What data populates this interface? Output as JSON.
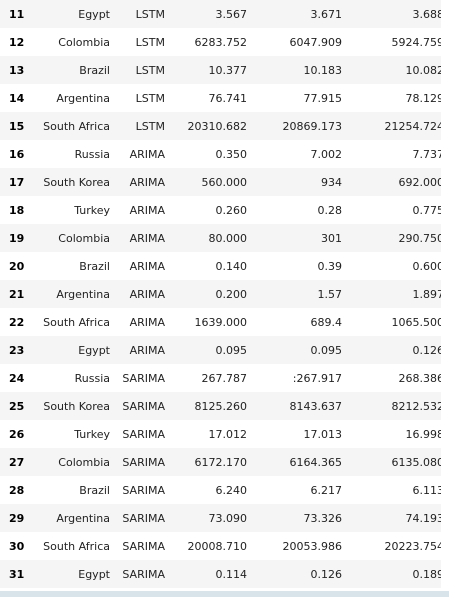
{
  "table": {
    "rows": [
      {
        "index": "11",
        "country": "Egypt",
        "model": "LSTM",
        "v1": "3.567",
        "v2": "3.671",
        "v3": "3.688"
      },
      {
        "index": "12",
        "country": "Colombia",
        "model": "LSTM",
        "v1": "6283.752",
        "v2": "6047.909",
        "v3": "5924.759"
      },
      {
        "index": "13",
        "country": "Brazil",
        "model": "LSTM",
        "v1": "10.377",
        "v2": "10.183",
        "v3": "10.082"
      },
      {
        "index": "14",
        "country": "Argentina",
        "model": "LSTM",
        "v1": "76.741",
        "v2": "77.915",
        "v3": "78.129"
      },
      {
        "index": "15",
        "country": "South Africa",
        "model": "LSTM",
        "v1": "20310.682",
        "v2": "20869.173",
        "v3": "21254.724"
      },
      {
        "index": "16",
        "country": "Russia",
        "model": "ARIMA",
        "v1": "0.350",
        "v2": "7.002",
        "v3": "7.737"
      },
      {
        "index": "17",
        "country": "South Korea",
        "model": "ARIMA",
        "v1": "560.000",
        "v2": "934",
        "v3": "692.000"
      },
      {
        "index": "18",
        "country": "Turkey",
        "model": "ARIMA",
        "v1": "0.260",
        "v2": "0.28",
        "v3": "0.775"
      },
      {
        "index": "19",
        "country": "Colombia",
        "model": "ARIMA",
        "v1": "80.000",
        "v2": "301",
        "v3": "290.750"
      },
      {
        "index": "20",
        "country": "Brazil",
        "model": "ARIMA",
        "v1": "0.140",
        "v2": "0.39",
        "v3": "0.600"
      },
      {
        "index": "21",
        "country": "Argentina",
        "model": "ARIMA",
        "v1": "0.200",
        "v2": "1.57",
        "v3": "1.897"
      },
      {
        "index": "22",
        "country": "South Africa",
        "model": "ARIMA",
        "v1": "1639.000",
        "v2": "689.4",
        "v3": "1065.500"
      },
      {
        "index": "23",
        "country": "Egypt",
        "model": "ARIMA",
        "v1": "0.095",
        "v2": "0.095",
        "v3": "0.126"
      },
      {
        "index": "24",
        "country": "Russia",
        "model": "SARIMA",
        "v1": "267.787",
        "v2": ":267.917",
        "v3": "268.386"
      },
      {
        "index": "25",
        "country": "South Korea",
        "model": "SARIMA",
        "v1": "8125.260",
        "v2": "8143.637",
        "v3": "8212.532"
      },
      {
        "index": "26",
        "country": "Turkey",
        "model": "SARIMA",
        "v1": "17.012",
        "v2": "17.013",
        "v3": "16.998"
      },
      {
        "index": "27",
        "country": "Colombia",
        "model": "SARIMA",
        "v1": "6172.170",
        "v2": "6164.365",
        "v3": "6135.080"
      },
      {
        "index": "28",
        "country": "Brazil",
        "model": "SARIMA",
        "v1": "6.240",
        "v2": "6.217",
        "v3": "6.113"
      },
      {
        "index": "29",
        "country": "Argentina",
        "model": "SARIMA",
        "v1": "73.090",
        "v2": "73.326",
        "v3": "74.193"
      },
      {
        "index": "30",
        "country": "South Africa",
        "model": "SARIMA",
        "v1": "20008.710",
        "v2": "20053.986",
        "v3": "20223.754"
      },
      {
        "index": "31",
        "country": "Egypt",
        "model": "SARIMA",
        "v1": "0.114",
        "v2": "0.126",
        "v3": "0.189"
      }
    ]
  },
  "colors": {
    "stripe": "#f5f5f5",
    "background": "#ffffff",
    "bottom_bar": "#d9e4ea"
  }
}
